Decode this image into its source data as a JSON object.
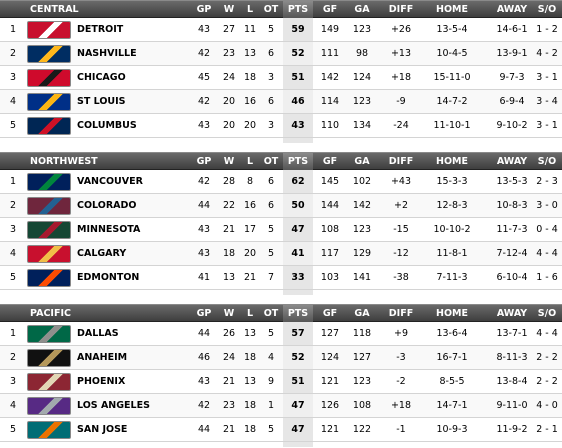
{
  "columns": {
    "gp": "GP",
    "w": "W",
    "l": "L",
    "ot": "OT",
    "pts": "PTS",
    "gf": "GF",
    "ga": "GA",
    "diff": "DIFF",
    "home": "HOME",
    "away": "AWAY",
    "so": "S/O"
  },
  "divisions": [
    {
      "name": "CENTRAL",
      "teams": [
        {
          "rank": "1",
          "team": "DETROIT",
          "gp": "43",
          "w": "27",
          "l": "11",
          "ot": "5",
          "pts": "59",
          "gf": "149",
          "ga": "123",
          "diff": "+26",
          "home": "13-5-4",
          "away": "14-6-1",
          "so": "1 - 2",
          "logo_colors": [
            "#c8102e",
            "#ffffff"
          ]
        },
        {
          "rank": "2",
          "team": "NASHVILLE",
          "gp": "42",
          "w": "23",
          "l": "13",
          "ot": "6",
          "pts": "52",
          "gf": "111",
          "ga": "98",
          "diff": "+13",
          "home": "10-4-5",
          "away": "13-9-1",
          "so": "4 - 2",
          "logo_colors": [
            "#002d62",
            "#ffb81c"
          ]
        },
        {
          "rank": "3",
          "team": "CHICAGO",
          "gp": "45",
          "w": "24",
          "l": "18",
          "ot": "3",
          "pts": "51",
          "gf": "142",
          "ga": "124",
          "diff": "+18",
          "home": "15-11-0",
          "away": "9-7-3",
          "so": "3 - 1",
          "logo_colors": [
            "#cf0a2c",
            "#1a1a1a"
          ]
        },
        {
          "rank": "4",
          "team": "ST LOUIS",
          "gp": "42",
          "w": "20",
          "l": "16",
          "ot": "6",
          "pts": "46",
          "gf": "114",
          "ga": "123",
          "diff": "-9",
          "home": "14-7-2",
          "away": "6-9-4",
          "so": "3 - 4",
          "logo_colors": [
            "#002f87",
            "#fcb514"
          ]
        },
        {
          "rank": "5",
          "team": "COLUMBUS",
          "gp": "43",
          "w": "20",
          "l": "20",
          "ot": "3",
          "pts": "43",
          "gf": "110",
          "ga": "134",
          "diff": "-24",
          "home": "11-10-1",
          "away": "9-10-2",
          "so": "3 - 1",
          "logo_colors": [
            "#002654",
            "#ce1126"
          ]
        }
      ]
    },
    {
      "name": "NORTHWEST",
      "teams": [
        {
          "rank": "1",
          "team": "VANCOUVER",
          "gp": "42",
          "w": "28",
          "l": "8",
          "ot": "6",
          "pts": "62",
          "gf": "145",
          "ga": "102",
          "diff": "+43",
          "home": "15-3-3",
          "away": "13-5-3",
          "so": "2 - 3",
          "logo_colors": [
            "#00205b",
            "#00843d"
          ]
        },
        {
          "rank": "2",
          "team": "COLORADO",
          "gp": "44",
          "w": "22",
          "l": "16",
          "ot": "6",
          "pts": "50",
          "gf": "144",
          "ga": "142",
          "diff": "+2",
          "home": "12-8-3",
          "away": "10-8-3",
          "so": "3 - 0",
          "logo_colors": [
            "#6f263d",
            "#236192"
          ]
        },
        {
          "rank": "3",
          "team": "MINNESOTA",
          "gp": "43",
          "w": "21",
          "l": "17",
          "ot": "5",
          "pts": "47",
          "gf": "108",
          "ga": "123",
          "diff": "-15",
          "home": "10-10-2",
          "away": "11-7-3",
          "so": "0 - 4",
          "logo_colors": [
            "#154734",
            "#a6192e"
          ]
        },
        {
          "rank": "4",
          "team": "CALGARY",
          "gp": "43",
          "w": "18",
          "l": "20",
          "ot": "5",
          "pts": "41",
          "gf": "117",
          "ga": "129",
          "diff": "-12",
          "home": "11-8-1",
          "away": "7-12-4",
          "so": "4 - 4",
          "logo_colors": [
            "#c8102e",
            "#f1be48"
          ]
        },
        {
          "rank": "5",
          "team": "EDMONTON",
          "gp": "41",
          "w": "13",
          "l": "21",
          "ot": "7",
          "pts": "33",
          "gf": "103",
          "ga": "141",
          "diff": "-38",
          "home": "7-11-3",
          "away": "6-10-4",
          "so": "1 - 6",
          "logo_colors": [
            "#00205b",
            "#fc4c02"
          ]
        }
      ]
    },
    {
      "name": "PACIFIC",
      "teams": [
        {
          "rank": "1",
          "team": "DALLAS",
          "gp": "44",
          "w": "26",
          "l": "13",
          "ot": "5",
          "pts": "57",
          "gf": "127",
          "ga": "118",
          "diff": "+9",
          "home": "13-6-4",
          "away": "13-7-1",
          "so": "4 - 4",
          "logo_colors": [
            "#006847",
            "#8f8f8c"
          ]
        },
        {
          "rank": "2",
          "team": "ANAHEIM",
          "gp": "46",
          "w": "24",
          "l": "18",
          "ot": "4",
          "pts": "52",
          "gf": "124",
          "ga": "127",
          "diff": "-3",
          "home": "16-7-1",
          "away": "8-11-3",
          "so": "2 - 2",
          "logo_colors": [
            "#111111",
            "#b5985a"
          ]
        },
        {
          "rank": "3",
          "team": "PHOENIX",
          "gp": "43",
          "w": "21",
          "l": "13",
          "ot": "9",
          "pts": "51",
          "gf": "121",
          "ga": "123",
          "diff": "-2",
          "home": "8-5-5",
          "away": "13-8-4",
          "so": "2 - 2",
          "logo_colors": [
            "#8c2633",
            "#e2d6b5"
          ]
        },
        {
          "rank": "4",
          "team": "LOS ANGELES",
          "gp": "42",
          "w": "23",
          "l": "18",
          "ot": "1",
          "pts": "47",
          "gf": "126",
          "ga": "108",
          "diff": "+18",
          "home": "14-7-1",
          "away": "9-11-0",
          "so": "4 - 0",
          "logo_colors": [
            "#572a84",
            "#a2aaad"
          ]
        },
        {
          "rank": "5",
          "team": "SAN JOSE",
          "gp": "44",
          "w": "21",
          "l": "18",
          "ot": "5",
          "pts": "47",
          "gf": "121",
          "ga": "122",
          "diff": "-1",
          "home": "10-9-3",
          "away": "11-9-2",
          "so": "2 - 1",
          "logo_colors": [
            "#006d75",
            "#ea7200"
          ]
        }
      ]
    }
  ]
}
